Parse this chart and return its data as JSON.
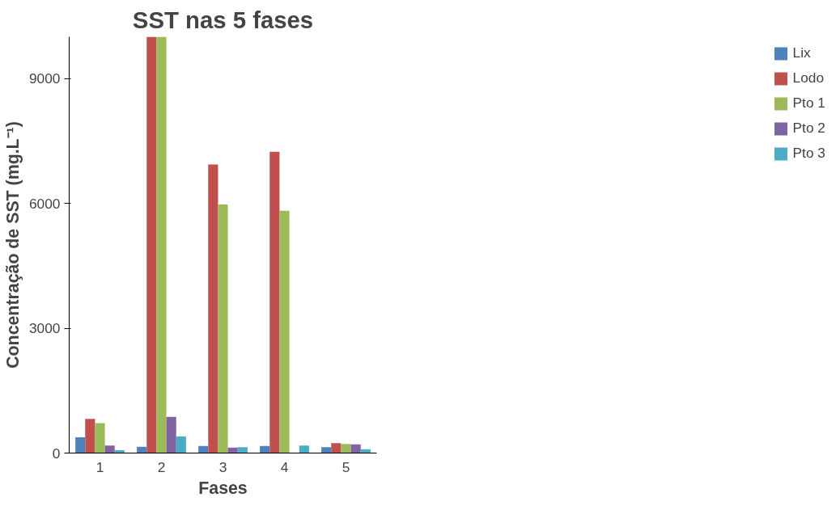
{
  "chart_data": {
    "type": "bar",
    "title": "SST nas 5 fases",
    "xlabel": "Fases",
    "ylabel": "Concentração de SST (mg.L⁻¹)",
    "categories": [
      "1",
      "2",
      "3",
      "4",
      "5"
    ],
    "series": [
      {
        "name": "Lix",
        "color": "#4f81bd",
        "values": [
          380,
          150,
          170,
          170,
          140
        ]
      },
      {
        "name": "Lodo",
        "color": "#c0504d",
        "values": [
          820,
          10000,
          6930,
          7240,
          240
        ]
      },
      {
        "name": "Pto 1",
        "color": "#9bbb59",
        "values": [
          720,
          10000,
          5970,
          5820,
          220
        ]
      },
      {
        "name": "Pto 2",
        "color": "#8064a2",
        "values": [
          180,
          870,
          130,
          0,
          210
        ]
      },
      {
        "name": "Pto 3",
        "color": "#4bacc6",
        "values": [
          70,
          400,
          140,
          180,
          90
        ]
      }
    ],
    "ylim": [
      0,
      10000
    ],
    "yticks": [
      0,
      3000,
      6000,
      9000
    ],
    "grid": false,
    "legend": "right"
  }
}
